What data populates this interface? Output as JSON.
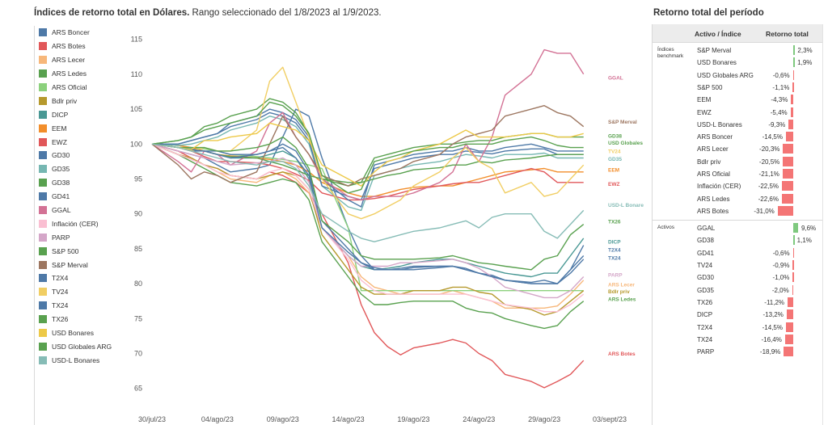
{
  "header": {
    "title_bold": "Índices de retorno total en Dólares.",
    "title_rest": " Rango seleccionado del 1/8/2023 al 1/9/2023."
  },
  "side_panel": {
    "title": "Retorno total del período",
    "col_asset": "Activo / Índice",
    "col_return": "Retorno total",
    "groups": [
      {
        "label": "Índices benchmark",
        "rows": [
          {
            "name": "S&P Merval",
            "value": 2.3,
            "label": "2,3%"
          },
          {
            "name": "USD Bonares",
            "value": 1.9,
            "label": "1,9%"
          },
          {
            "name": "USD Globales ARG",
            "value": -0.6,
            "label": "-0,6%"
          },
          {
            "name": "S&P 500",
            "value": -1.1,
            "label": "-1,1%"
          },
          {
            "name": "EEM",
            "value": -4.3,
            "label": "-4,3%"
          },
          {
            "name": "EWZ",
            "value": -5.4,
            "label": "-5,4%"
          },
          {
            "name": "USD-L Bonares",
            "value": -9.3,
            "label": "-9,3%"
          },
          {
            "name": "ARS Boncer",
            "value": -14.5,
            "label": "-14,5%"
          },
          {
            "name": "ARS Lecer",
            "value": -20.3,
            "label": "-20,3%"
          },
          {
            "name": "Bdlr priv",
            "value": -20.5,
            "label": "-20,5%"
          },
          {
            "name": "ARS Oficial",
            "value": -21.1,
            "label": "-21,1%"
          },
          {
            "name": "Inflación (CER)",
            "value": -22.5,
            "label": "-22,5%"
          },
          {
            "name": "ARS Ledes",
            "value": -22.6,
            "label": "-22,6%"
          },
          {
            "name": "ARS Botes",
            "value": -31.0,
            "label": "-31,0%"
          }
        ]
      },
      {
        "label": "Activos",
        "rows": [
          {
            "name": "GGAL",
            "value": 9.6,
            "label": "9,6%"
          },
          {
            "name": "GD38",
            "value": 1.1,
            "label": "1,1%"
          },
          {
            "name": "GD41",
            "value": -0.6,
            "label": "-0,6%"
          },
          {
            "name": "TV24",
            "value": -0.9,
            "label": "-0,9%"
          },
          {
            "name": "GD30",
            "value": -1.0,
            "label": "-1,0%"
          },
          {
            "name": "GD35",
            "value": -2.0,
            "label": "-2,0%"
          },
          {
            "name": "TX26",
            "value": -11.2,
            "label": "-11,2%"
          },
          {
            "name": "DICP",
            "value": -13.2,
            "label": "-13,2%"
          },
          {
            "name": "T2X4",
            "value": -14.5,
            "label": "-14,5%"
          },
          {
            "name": "TX24",
            "value": -16.4,
            "label": "-16,4%"
          },
          {
            "name": "PARP",
            "value": -18.9,
            "label": "-18,9%"
          }
        ]
      }
    ],
    "colors": {
      "positive": "#7fc97f",
      "negative": "#f47575"
    }
  },
  "chart_data": {
    "type": "line",
    "title": "Índices de retorno total en Dólares. Rango seleccionado del 1/8/2023 al 1/9/2023.",
    "xlabel": "",
    "ylabel": "",
    "ylim": [
      63,
      116
    ],
    "yticks": [
      65,
      70,
      75,
      80,
      85,
      90,
      95,
      100,
      105,
      110,
      115
    ],
    "xlim": [
      0,
      35
    ],
    "xticks": [
      {
        "x": 0,
        "label": "30/jul/23"
      },
      {
        "x": 5,
        "label": "04/ago/23"
      },
      {
        "x": 10,
        "label": "09/ago/23"
      },
      {
        "x": 15,
        "label": "14/ago/23"
      },
      {
        "x": 20,
        "label": "19/ago/23"
      },
      {
        "x": 25,
        "label": "24/ago/23"
      },
      {
        "x": 30,
        "label": "29/ago/23"
      },
      {
        "x": 35,
        "label": "03/sept/23"
      }
    ],
    "x": [
      2,
      3,
      4,
      5,
      6,
      8,
      9,
      10,
      11,
      12,
      13,
      15,
      16,
      17,
      18,
      19,
      20,
      22,
      23,
      24,
      25,
      26,
      27,
      29,
      30,
      31,
      32,
      33,
      34
    ],
    "series": [
      {
        "name": "ARS Boncer",
        "color": "#4e79a7",
        "values": [
          100,
          99,
          98.5,
          98,
          97,
          96,
          96.5,
          97,
          101,
          105,
          104,
          98,
          88,
          84,
          82,
          82,
          82,
          82.3,
          82.5,
          82.5,
          82.2,
          81.5,
          81.2,
          80.5,
          80.2,
          80.5,
          80,
          82,
          85.5
        ]
      },
      {
        "name": "ARS Botes",
        "color": "#e15759",
        "values": [
          100,
          99,
          98,
          97,
          96.5,
          95.5,
          95,
          96,
          95.5,
          94.5,
          93,
          90,
          83,
          77,
          73,
          71,
          69.8,
          70.8,
          71.5,
          72,
          71.5,
          70,
          69,
          67,
          66,
          65.1,
          66,
          67,
          69
        ]
      },
      {
        "name": "ARS Lecer",
        "color": "#f7b77a",
        "values": [
          100,
          98.5,
          98,
          97,
          96,
          95,
          94.5,
          95.5,
          96,
          95,
          93,
          88,
          84,
          81,
          79.5,
          79,
          78.5,
          78.5,
          78.5,
          79,
          78.5,
          78,
          77.5,
          76.5,
          76.5,
          76.5,
          76.8,
          78.5,
          80.5
        ]
      },
      {
        "name": "ARS Ledes",
        "color": "#59a14f",
        "values": [
          100,
          98.5,
          97.5,
          96.5,
          95.5,
          94.5,
          94,
          94.5,
          95,
          94.5,
          92,
          86,
          81,
          78.5,
          77,
          77,
          77.3,
          77.5,
          77.5,
          77.5,
          76.5,
          76,
          75.8,
          75,
          74,
          73.6,
          74,
          76,
          77.5
        ]
      },
      {
        "name": "ARS Oficial",
        "color": "#8cd17d",
        "values": [
          100,
          99.8,
          99.5,
          99.3,
          99,
          98.5,
          98.2,
          98,
          97.8,
          97.5,
          97,
          96.5,
          88,
          79,
          79,
          79,
          79,
          79,
          79,
          79,
          79,
          79,
          79,
          79,
          79,
          79,
          79,
          79,
          79
        ]
      },
      {
        "name": "Bdlr priv",
        "color": "#b6992d",
        "values": [
          100,
          98.5,
          98,
          97,
          96.5,
          95.5,
          95,
          95.5,
          96,
          95.5,
          93.5,
          87,
          82,
          79.5,
          78.5,
          78.5,
          78.5,
          79,
          79,
          79.5,
          79.5,
          78.8,
          78.5,
          77,
          76.3,
          75.5,
          76,
          77.5,
          79
        ]
      },
      {
        "name": "DICP",
        "color": "#499894",
        "values": [
          100,
          99.5,
          99.3,
          99,
          98.5,
          98,
          98,
          98.5,
          99,
          98,
          95,
          88,
          84,
          82.5,
          82,
          82.2,
          82.5,
          83,
          83.5,
          83.5,
          83,
          82.5,
          82,
          81.5,
          81,
          81.5,
          81.5,
          84,
          86.5
        ]
      },
      {
        "name": "EEM",
        "color": "#f28e2b",
        "values": [
          100,
          99.8,
          99.5,
          99,
          98.5,
          98.3,
          98,
          97.8,
          97.5,
          97,
          96,
          94.5,
          93,
          92.5,
          92.5,
          93,
          93.5,
          93.8,
          94,
          94,
          94.5,
          95,
          95.5,
          96,
          96.3,
          96.5,
          96,
          96,
          96
        ]
      },
      {
        "name": "EWZ",
        "color": "#e15759",
        "values": [
          100,
          99.5,
          99,
          98.2,
          97.5,
          97.5,
          97.3,
          97,
          96.5,
          95.7,
          94.8,
          93,
          92,
          92,
          92.2,
          92.5,
          93,
          93.5,
          94,
          94.3,
          94.5,
          94.5,
          95,
          95.5,
          96.5,
          96,
          94.5,
          94.5,
          94.5
        ]
      },
      {
        "name": "GD30",
        "color": "#4e79a7",
        "values": [
          100,
          100,
          100.5,
          101,
          101.5,
          103,
          104,
          105,
          104.5,
          103.5,
          101,
          95,
          92,
          91,
          97,
          97.5,
          98,
          98.5,
          99,
          99,
          99.5,
          99,
          99,
          99.5,
          100,
          99.5,
          99,
          99,
          99
        ]
      },
      {
        "name": "GD35",
        "color": "#76b7b2",
        "values": [
          100,
          99.8,
          100,
          100.5,
          101,
          102,
          103,
          104,
          103.5,
          102.5,
          100,
          94,
          91,
          90.5,
          95.5,
          96,
          96.5,
          97,
          97.5,
          98,
          98.5,
          98.3,
          98,
          98.5,
          98.5,
          98.7,
          98,
          98,
          98
        ]
      },
      {
        "name": "GD38",
        "color": "#59a14f",
        "values": [
          100,
          100.5,
          101,
          102.5,
          103,
          104,
          105,
          106.5,
          106,
          104.5,
          101.5,
          95,
          94,
          94.5,
          98,
          98.5,
          99,
          99.5,
          100,
          100,
          100.3,
          100.5,
          100.5,
          101,
          101.5,
          101.5,
          101,
          101,
          101
        ]
      },
      {
        "name": "GD41",
        "color": "#4e79a7",
        "values": [
          100,
          100,
          100.5,
          101,
          101.5,
          102.5,
          103.5,
          104.5,
          104,
          103,
          100.5,
          94,
          92.5,
          92,
          96.5,
          97,
          97.5,
          98,
          98.5,
          98.5,
          99,
          98.8,
          98.6,
          99,
          99.3,
          99.3,
          98.5,
          98.5,
          98.5
        ]
      },
      {
        "name": "GGAL",
        "color": "#d37295",
        "values": [
          100,
          97.5,
          96,
          99,
          98.5,
          97,
          99,
          103,
          104.5,
          101,
          98.5,
          95,
          92.5,
          92,
          92.5,
          92.5,
          92.5,
          93,
          94.5,
          96,
          100,
          97.5,
          101,
          107,
          110,
          113.5,
          113,
          113,
          110
        ]
      },
      {
        "name": "Inflación (CER)",
        "color": "#fabfd2",
        "values": [
          100,
          98.5,
          97.8,
          97,
          96,
          95.5,
          95,
          96,
          96.5,
          95.5,
          93.5,
          88,
          83.5,
          80.5,
          79,
          78.5,
          78.5,
          78.5,
          78.5,
          78.5,
          78.5,
          78,
          77.5,
          77,
          76.5,
          76,
          76,
          77,
          78.5
        ]
      },
      {
        "name": "PARP",
        "color": "#d4a6c8",
        "values": [
          100,
          99,
          98.5,
          98,
          97.5,
          97,
          97.3,
          97.5,
          98,
          97,
          94.5,
          88,
          84,
          82.5,
          82.5,
          82.5,
          83,
          83,
          83.3,
          83.5,
          83,
          82.2,
          81,
          79.5,
          78.5,
          78,
          78,
          79,
          81
        ]
      },
      {
        "name": "S&P 500",
        "color": "#59a14f",
        "values": [
          100,
          99.5,
          99.2,
          99,
          98.5,
          98.2,
          98,
          97.5,
          97,
          96.3,
          95.5,
          95,
          94.5,
          94.5,
          95,
          95.5,
          95.8,
          96.3,
          96.6,
          97,
          97,
          97.5,
          97.3,
          97.7,
          98,
          98.3,
          98.5,
          98.5,
          98.5
        ]
      },
      {
        "name": "S&P Merval",
        "color": "#9d7660",
        "values": [
          100,
          97,
          95,
          96,
          95.5,
          94.5,
          96,
          100,
          104,
          101,
          98.5,
          95.5,
          94,
          95,
          95.5,
          96,
          96.5,
          97.5,
          98.5,
          100,
          101,
          101.5,
          102,
          104,
          105,
          105.5,
          104.5,
          104,
          102.5
        ]
      },
      {
        "name": "T2X4",
        "color": "#4e79a7",
        "values": [
          100,
          99.5,
          99,
          99,
          98.5,
          98,
          98.5,
          99,
          100,
          99,
          96,
          89,
          85,
          83,
          82,
          82,
          82.2,
          82.5,
          82.5,
          82.5,
          82,
          81.5,
          81,
          80.5,
          80,
          80,
          80,
          82,
          84
        ]
      },
      {
        "name": "TV24",
        "color": "#f1ce63",
        "values": [
          100,
          99.5,
          99,
          99.5,
          99,
          99,
          102,
          109,
          111,
          106,
          101,
          95,
          90,
          89.3,
          90,
          91,
          92,
          94,
          96,
          98,
          99.5,
          97.5,
          96.5,
          93,
          94.5,
          92.5,
          93,
          95,
          97
        ]
      },
      {
        "name": "TX24",
        "color": "#4e79a7",
        "values": [
          100,
          99.5,
          99.2,
          99,
          99,
          98.5,
          98.5,
          99,
          99.5,
          98,
          95.5,
          88,
          84.5,
          83,
          82.3,
          82,
          82,
          82,
          82.3,
          82.5,
          82,
          81.5,
          81,
          80.5,
          80,
          80,
          80,
          81.5,
          83.5
        ]
      },
      {
        "name": "TX26",
        "color": "#59a14f",
        "values": [
          100,
          99.5,
          99.5,
          99.5,
          99,
          99,
          99.5,
          100,
          101,
          99.5,
          96.5,
          89,
          86,
          84,
          83.5,
          83.5,
          83.5,
          83.5,
          83.7,
          84,
          83.5,
          83,
          82.8,
          82.5,
          82,
          83.5,
          84,
          87,
          88.5
        ]
      },
      {
        "name": "USD Bonares",
        "color": "#edc948",
        "values": [
          100,
          99.5,
          99.2,
          100.5,
          100.5,
          101,
          101.5,
          103,
          102.5,
          102,
          100.5,
          97,
          95,
          94,
          96,
          97.5,
          98,
          99,
          100,
          101,
          102,
          101,
          101,
          101,
          101.5,
          101.5,
          101,
          101,
          101.5
        ]
      },
      {
        "name": "USD Globales ARG",
        "color": "#59a14f",
        "values": [
          100,
          100.5,
          101,
          102,
          102.5,
          103,
          104,
          106,
          105.5,
          104,
          101.5,
          95.5,
          93,
          93.5,
          97.5,
          98,
          98.5,
          99,
          99.5,
          99.5,
          100,
          100,
          100,
          100.5,
          101,
          100.5,
          99.8,
          99.5,
          99.5
        ]
      },
      {
        "name": "USD-L Bonares",
        "color": "#86bcb6",
        "values": [
          100,
          99.5,
          99,
          98.5,
          98,
          97.5,
          97,
          97.5,
          97.5,
          96.5,
          94,
          90,
          87.5,
          86.5,
          86,
          86.5,
          87,
          87.5,
          88,
          88.5,
          89,
          88,
          89.5,
          90,
          90,
          87.5,
          86.5,
          88.5,
          90.5
        ]
      }
    ],
    "end_labels": [
      {
        "text": "GGAL",
        "value": 109.5,
        "color": "#d37295"
      },
      {
        "text": "S&P Merval",
        "value": 103.2,
        "color": "#9d7660"
      },
      {
        "text": "GD38",
        "value": 101.2,
        "color": "#59a14f"
      },
      {
        "text": "USD Globales ARG",
        "value": 100.2,
        "color": "#59a14f"
      },
      {
        "text": "TV24",
        "value": 99.0,
        "color": "#f1ce63"
      },
      {
        "text": "GD35",
        "value": 97.9,
        "color": "#76b7b2"
      },
      {
        "text": "EEM",
        "value": 96.3,
        "color": "#f28e2b"
      },
      {
        "text": "EWZ",
        "value": 94.3,
        "color": "#e15759"
      },
      {
        "text": "USD-L Bonares",
        "value": 91.3,
        "color": "#86bcb6"
      },
      {
        "text": "TX26",
        "value": 88.9,
        "color": "#59a14f"
      },
      {
        "text": "DICP",
        "value": 86.0,
        "color": "#499894"
      },
      {
        "text": "T2X4",
        "value": 84.9,
        "color": "#4e79a7"
      },
      {
        "text": "TX24",
        "value": 83.7,
        "color": "#4e79a7"
      },
      {
        "text": "PARP",
        "value": 81.3,
        "color": "#d4a6c8"
      },
      {
        "text": "ARS Lecer",
        "value": 79.9,
        "color": "#f7b77a"
      },
      {
        "text": "Bdlr priv",
        "value": 78.9,
        "color": "#b6992d"
      },
      {
        "text": "ARS Ledes",
        "value": 77.8,
        "color": "#59a14f"
      },
      {
        "text": "ARS Botes",
        "value": 70.0,
        "color": "#e15759"
      }
    ]
  }
}
